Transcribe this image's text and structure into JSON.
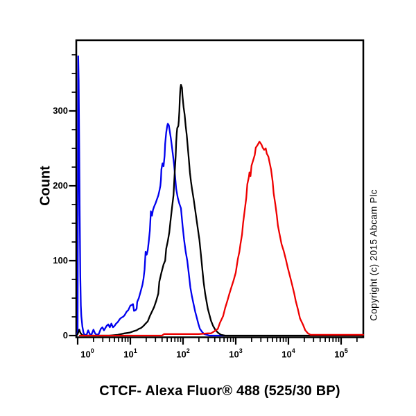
{
  "figure": {
    "title": "CTCF- Alexa Fluor® 488 (525/30 BP)",
    "y_axis_label": "Count",
    "copyright": "Copyright (c) 2015 Abcam Plc"
  },
  "chart_data": {
    "type": "line",
    "subtype": "flow-cytometry-histogram-overlay",
    "title": "",
    "xlabel": "CTCF- Alexa Fluor® 488 (525/30 BP)",
    "ylabel": "Count",
    "x_scale": "log10",
    "x_tick_exponents": [
      0,
      1,
      2,
      3,
      4,
      5
    ],
    "x_range_log10": [
      -0.03,
      5.42
    ],
    "ylim": [
      0,
      394
    ],
    "y_ticks": [
      0,
      100,
      200,
      300
    ],
    "y_minor_step": 25,
    "grid": false,
    "legend": "none",
    "frame_color": "#000000",
    "series": [
      {
        "name": "blue-histogram",
        "color": "#0000ee",
        "peak": {
          "x_log10": 1.71,
          "count": 283
        },
        "points": [
          [
            -0.02,
            0
          ],
          [
            0,
            5
          ],
          [
            0.01,
            373
          ],
          [
            0.02,
            340
          ],
          [
            0.03,
            250
          ],
          [
            0.04,
            160
          ],
          [
            0.05,
            80
          ],
          [
            0.06,
            40
          ],
          [
            0.07,
            26
          ],
          [
            0.09,
            12
          ],
          [
            0.11,
            4
          ],
          [
            0.13,
            1
          ],
          [
            0.17,
            1
          ],
          [
            0.2,
            7
          ],
          [
            0.23,
            2
          ],
          [
            0.26,
            1
          ],
          [
            0.3,
            8
          ],
          [
            0.33,
            3
          ],
          [
            0.36,
            1
          ],
          [
            0.4,
            2
          ],
          [
            0.44,
            9
          ],
          [
            0.47,
            11
          ],
          [
            0.5,
            7
          ],
          [
            0.55,
            13
          ],
          [
            0.58,
            15
          ],
          [
            0.61,
            11
          ],
          [
            0.64,
            16
          ],
          [
            0.67,
            11
          ],
          [
            0.7,
            13
          ],
          [
            0.73,
            16
          ],
          [
            0.76,
            18
          ],
          [
            0.8,
            22
          ],
          [
            0.83,
            24
          ],
          [
            0.86,
            25
          ],
          [
            0.89,
            27
          ],
          [
            0.93,
            32
          ],
          [
            0.96,
            34
          ],
          [
            1,
            40
          ],
          [
            1.03,
            41
          ],
          [
            1.05,
            42
          ],
          [
            1.07,
            33
          ],
          [
            1.1,
            34
          ],
          [
            1.12,
            36
          ],
          [
            1.13,
            45
          ],
          [
            1.16,
            50
          ],
          [
            1.2,
            60
          ],
          [
            1.23,
            68
          ],
          [
            1.25,
            76
          ],
          [
            1.27,
            88
          ],
          [
            1.29,
            112
          ],
          [
            1.31,
            108
          ],
          [
            1.33,
            114
          ],
          [
            1.35,
            126
          ],
          [
            1.37,
            140
          ],
          [
            1.39,
            166
          ],
          [
            1.41,
            160
          ],
          [
            1.43,
            168
          ],
          [
            1.45,
            172
          ],
          [
            1.48,
            177
          ],
          [
            1.5,
            181
          ],
          [
            1.53,
            187
          ],
          [
            1.55,
            193
          ],
          [
            1.57,
            200
          ],
          [
            1.58,
            208
          ],
          [
            1.59,
            222
          ],
          [
            1.61,
            230
          ],
          [
            1.63,
            226
          ],
          [
            1.65,
            240
          ],
          [
            1.66,
            256
          ],
          [
            1.68,
            271
          ],
          [
            1.7,
            280
          ],
          [
            1.71,
            283
          ],
          [
            1.73,
            281
          ],
          [
            1.75,
            272
          ],
          [
            1.77,
            263
          ],
          [
            1.79,
            252
          ],
          [
            1.81,
            240
          ],
          [
            1.83,
            228
          ],
          [
            1.85,
            212
          ],
          [
            1.87,
            196
          ],
          [
            1.9,
            184
          ],
          [
            1.93,
            176
          ],
          [
            1.96,
            170
          ],
          [
            1.99,
            148
          ],
          [
            2.02,
            128
          ],
          [
            2.05,
            112
          ],
          [
            2.08,
            100
          ],
          [
            2.11,
            82
          ],
          [
            2.14,
            64
          ],
          [
            2.17,
            52
          ],
          [
            2.2,
            42
          ],
          [
            2.23,
            32
          ],
          [
            2.26,
            24
          ],
          [
            2.29,
            16
          ],
          [
            2.32,
            9
          ],
          [
            2.36,
            5
          ],
          [
            2.4,
            2
          ],
          [
            2.45,
            1
          ],
          [
            2.5,
            0
          ],
          [
            2.6,
            0
          ],
          [
            2.7,
            0
          ],
          [
            2.78,
            0
          ]
        ]
      },
      {
        "name": "black-histogram",
        "color": "#000000",
        "peak": {
          "x_log10": 1.96,
          "count": 335
        },
        "points": [
          [
            -0.02,
            0
          ],
          [
            0,
            2
          ],
          [
            0.03,
            8
          ],
          [
            0.05,
            4
          ],
          [
            0.08,
            1
          ],
          [
            0.12,
            0
          ],
          [
            0.4,
            0
          ],
          [
            0.6,
            0
          ],
          [
            0.76,
            1
          ],
          [
            0.83,
            2
          ],
          [
            0.89,
            3
          ],
          [
            0.99,
            4
          ],
          [
            1.07,
            6
          ],
          [
            1.12,
            7
          ],
          [
            1.16,
            9
          ],
          [
            1.2,
            10
          ],
          [
            1.25,
            13
          ],
          [
            1.29,
            16
          ],
          [
            1.33,
            19
          ],
          [
            1.37,
            26
          ],
          [
            1.41,
            32
          ],
          [
            1.45,
            38
          ],
          [
            1.49,
            46
          ],
          [
            1.53,
            56
          ],
          [
            1.55,
            72
          ],
          [
            1.59,
            84
          ],
          [
            1.63,
            95
          ],
          [
            1.66,
            100
          ],
          [
            1.68,
            116
          ],
          [
            1.71,
            126
          ],
          [
            1.74,
            138
          ],
          [
            1.76,
            152
          ],
          [
            1.79,
            170
          ],
          [
            1.82,
            188
          ],
          [
            1.84,
            215
          ],
          [
            1.86,
            240
          ],
          [
            1.87,
            258
          ],
          [
            1.88,
            270
          ],
          [
            1.89,
            277
          ],
          [
            1.91,
            280
          ],
          [
            1.92,
            287
          ],
          [
            1.93,
            300
          ],
          [
            1.94,
            318
          ],
          [
            1.95,
            330
          ],
          [
            1.96,
            335
          ],
          [
            1.98,
            331
          ],
          [
            1.99,
            320
          ],
          [
            2.01,
            305
          ],
          [
            2.03,
            295
          ],
          [
            2.05,
            280
          ],
          [
            2.07,
            268
          ],
          [
            2.09,
            252
          ],
          [
            2.11,
            235
          ],
          [
            2.13,
            218
          ],
          [
            2.15,
            206
          ],
          [
            2.17,
            196
          ],
          [
            2.2,
            183
          ],
          [
            2.23,
            168
          ],
          [
            2.25,
            158
          ],
          [
            2.28,
            143
          ],
          [
            2.31,
            128
          ],
          [
            2.34,
            108
          ],
          [
            2.37,
            86
          ],
          [
            2.39,
            72
          ],
          [
            2.42,
            56
          ],
          [
            2.45,
            44
          ],
          [
            2.47,
            36
          ],
          [
            2.5,
            28
          ],
          [
            2.53,
            20
          ],
          [
            2.57,
            13
          ],
          [
            2.61,
            8
          ],
          [
            2.66,
            4
          ],
          [
            2.72,
            1
          ],
          [
            2.8,
            0
          ],
          [
            3,
            0
          ],
          [
            3.5,
            0
          ],
          [
            4,
            0
          ],
          [
            4.5,
            0
          ],
          [
            5,
            0
          ],
          [
            5.42,
            0
          ]
        ]
      },
      {
        "name": "red-histogram",
        "color": "#ee0000",
        "peak": {
          "x_log10": 3.45,
          "count": 259
        },
        "points": [
          [
            0.04,
            0
          ],
          [
            0.5,
            0
          ],
          [
            1,
            0
          ],
          [
            1.6,
            0
          ],
          [
            1.64,
            2
          ],
          [
            2,
            2
          ],
          [
            2.3,
            2
          ],
          [
            2.47,
            3
          ],
          [
            2.53,
            3
          ],
          [
            2.6,
            6
          ],
          [
            2.66,
            9
          ],
          [
            2.7,
            17
          ],
          [
            2.76,
            26
          ],
          [
            2.8,
            37
          ],
          [
            2.84,
            46
          ],
          [
            2.88,
            56
          ],
          [
            2.92,
            65
          ],
          [
            2.96,
            74
          ],
          [
            3,
            84
          ],
          [
            3.04,
            102
          ],
          [
            3.07,
            112
          ],
          [
            3.09,
            122
          ],
          [
            3.12,
            135
          ],
          [
            3.14,
            150
          ],
          [
            3.17,
            167
          ],
          [
            3.2,
            184
          ],
          [
            3.22,
            202
          ],
          [
            3.25,
            212
          ],
          [
            3.26,
            218
          ],
          [
            3.28,
            213
          ],
          [
            3.3,
            227
          ],
          [
            3.33,
            234
          ],
          [
            3.36,
            241
          ],
          [
            3.38,
            251
          ],
          [
            3.41,
            254
          ],
          [
            3.45,
            259
          ],
          [
            3.49,
            255
          ],
          [
            3.51,
            251
          ],
          [
            3.54,
            248
          ],
          [
            3.57,
            250
          ],
          [
            3.59,
            243
          ],
          [
            3.62,
            239
          ],
          [
            3.64,
            232
          ],
          [
            3.67,
            222
          ],
          [
            3.7,
            206
          ],
          [
            3.72,
            190
          ],
          [
            3.75,
            176
          ],
          [
            3.78,
            160
          ],
          [
            3.8,
            147
          ],
          [
            3.83,
            136
          ],
          [
            3.87,
            122
          ],
          [
            3.91,
            113
          ],
          [
            3.95,
            102
          ],
          [
            3.99,
            90
          ],
          [
            4.03,
            79
          ],
          [
            4.07,
            68
          ],
          [
            4.11,
            56
          ],
          [
            4.14,
            46
          ],
          [
            4.18,
            35
          ],
          [
            4.22,
            23
          ],
          [
            4.28,
            14
          ],
          [
            4.32,
            7
          ],
          [
            4.37,
            3
          ],
          [
            4.42,
            1
          ],
          [
            4.6,
            1
          ],
          [
            5,
            1
          ],
          [
            5.42,
            1
          ]
        ]
      }
    ]
  }
}
